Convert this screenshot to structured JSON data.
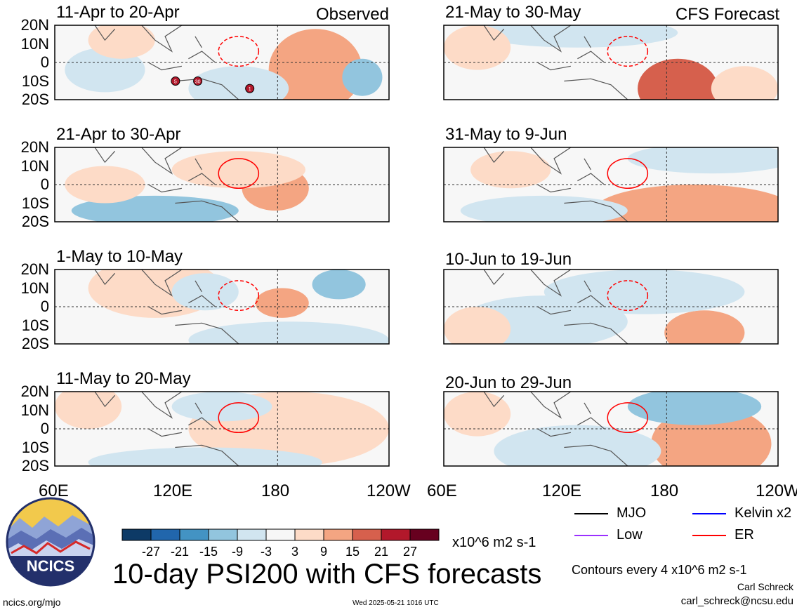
{
  "observed_label": "Observed",
  "forecast_label": "CFS Forecast",
  "left_panels": [
    {
      "title": "11-Apr to 20-Apr"
    },
    {
      "title": "21-Apr to 30-Apr"
    },
    {
      "title": "1-May to 10-May"
    },
    {
      "title": "11-May to 20-May"
    }
  ],
  "right_panels": [
    {
      "title": "21-May to 30-May"
    },
    {
      "title": "31-May to 9-Jun"
    },
    {
      "title": "10-Jun to 19-Jun"
    },
    {
      "title": "20-Jun to 29-Jun"
    }
  ],
  "y_ticks": [
    "20N",
    "10N",
    "0",
    "10S",
    "20S"
  ],
  "x_ticks_left": [
    "60E",
    "120E",
    "180",
    "120W"
  ],
  "x_ticks_right": [
    "60E",
    "120E",
    "180",
    "120W"
  ],
  "colorbar": {
    "colors": [
      "#0d3a66",
      "#2166ac",
      "#4393c3",
      "#92c5de",
      "#d1e5f0",
      "#f7f7f7",
      "#fddbc7",
      "#f4a582",
      "#d6604d",
      "#b2182b",
      "#67001f"
    ],
    "tick_labels": [
      "-27",
      "-21",
      "-15",
      "-9",
      "-3",
      "3",
      "9",
      "15",
      "21",
      "27"
    ],
    "units": "x10^6 m2 s-1"
  },
  "legend": [
    {
      "label": "MJO",
      "color": "#000000"
    },
    {
      "label": "Kelvin x2",
      "color": "#0000ff"
    },
    {
      "label": "Low",
      "color": "#9b30ff"
    },
    {
      "label": "ER",
      "color": "#ff0000"
    }
  ],
  "main_title": "10-day PSI200 with CFS forecasts",
  "contour_note": "Contours every 4 x10^6 m2 s-1",
  "author": "Carl Schreck",
  "email": "carl_schreck@ncsu.edu",
  "url": "ncics.org/mjo",
  "timestamp": "Wed 2025-05-21 1016 UTC",
  "logo_text": "NCICS",
  "chart_data": {
    "type": "heatmap",
    "variable": "10-day PSI200",
    "units": "x10^6 m2 s-1",
    "x_axis_ticks": [
      "60E",
      "120E",
      "180",
      "120W"
    ],
    "y_axis_ticks": [
      "20N",
      "10N",
      "0",
      "10S",
      "20S"
    ],
    "xlim_deg_east": [
      60,
      240
    ],
    "ylim_deg": [
      -20,
      20
    ],
    "color_levels": [
      -27,
      -21,
      -15,
      -9,
      -3,
      3,
      9,
      15,
      21,
      27
    ],
    "contour_interval": 4,
    "panels": [
      {
        "title": "11-Apr to 20-Apr",
        "kind": "Observed"
      },
      {
        "title": "21-Apr to 30-Apr",
        "kind": "Observed"
      },
      {
        "title": "1-May to 10-May",
        "kind": "Observed"
      },
      {
        "title": "11-May to 20-May",
        "kind": "Observed"
      },
      {
        "title": "21-May to 30-May",
        "kind": "CFS Forecast"
      },
      {
        "title": "31-May to 9-Jun",
        "kind": "CFS Forecast"
      },
      {
        "title": "10-Jun to 19-Jun",
        "kind": "CFS Forecast"
      },
      {
        "title": "20-Jun to 29-Jun",
        "kind": "CFS Forecast"
      }
    ],
    "legend": [
      "MJO",
      "Kelvin x2",
      "Low",
      "ER"
    ],
    "storm_markers": [
      {
        "panel": "11-Apr to 20-Apr",
        "label": "5",
        "lon": 125,
        "lat": -10
      },
      {
        "panel": "11-Apr to 20-Apr",
        "label": "30",
        "lon": 137,
        "lat": -10
      },
      {
        "panel": "11-Apr to 20-Apr",
        "label": "1",
        "lon": 165,
        "lat": -14
      }
    ]
  }
}
